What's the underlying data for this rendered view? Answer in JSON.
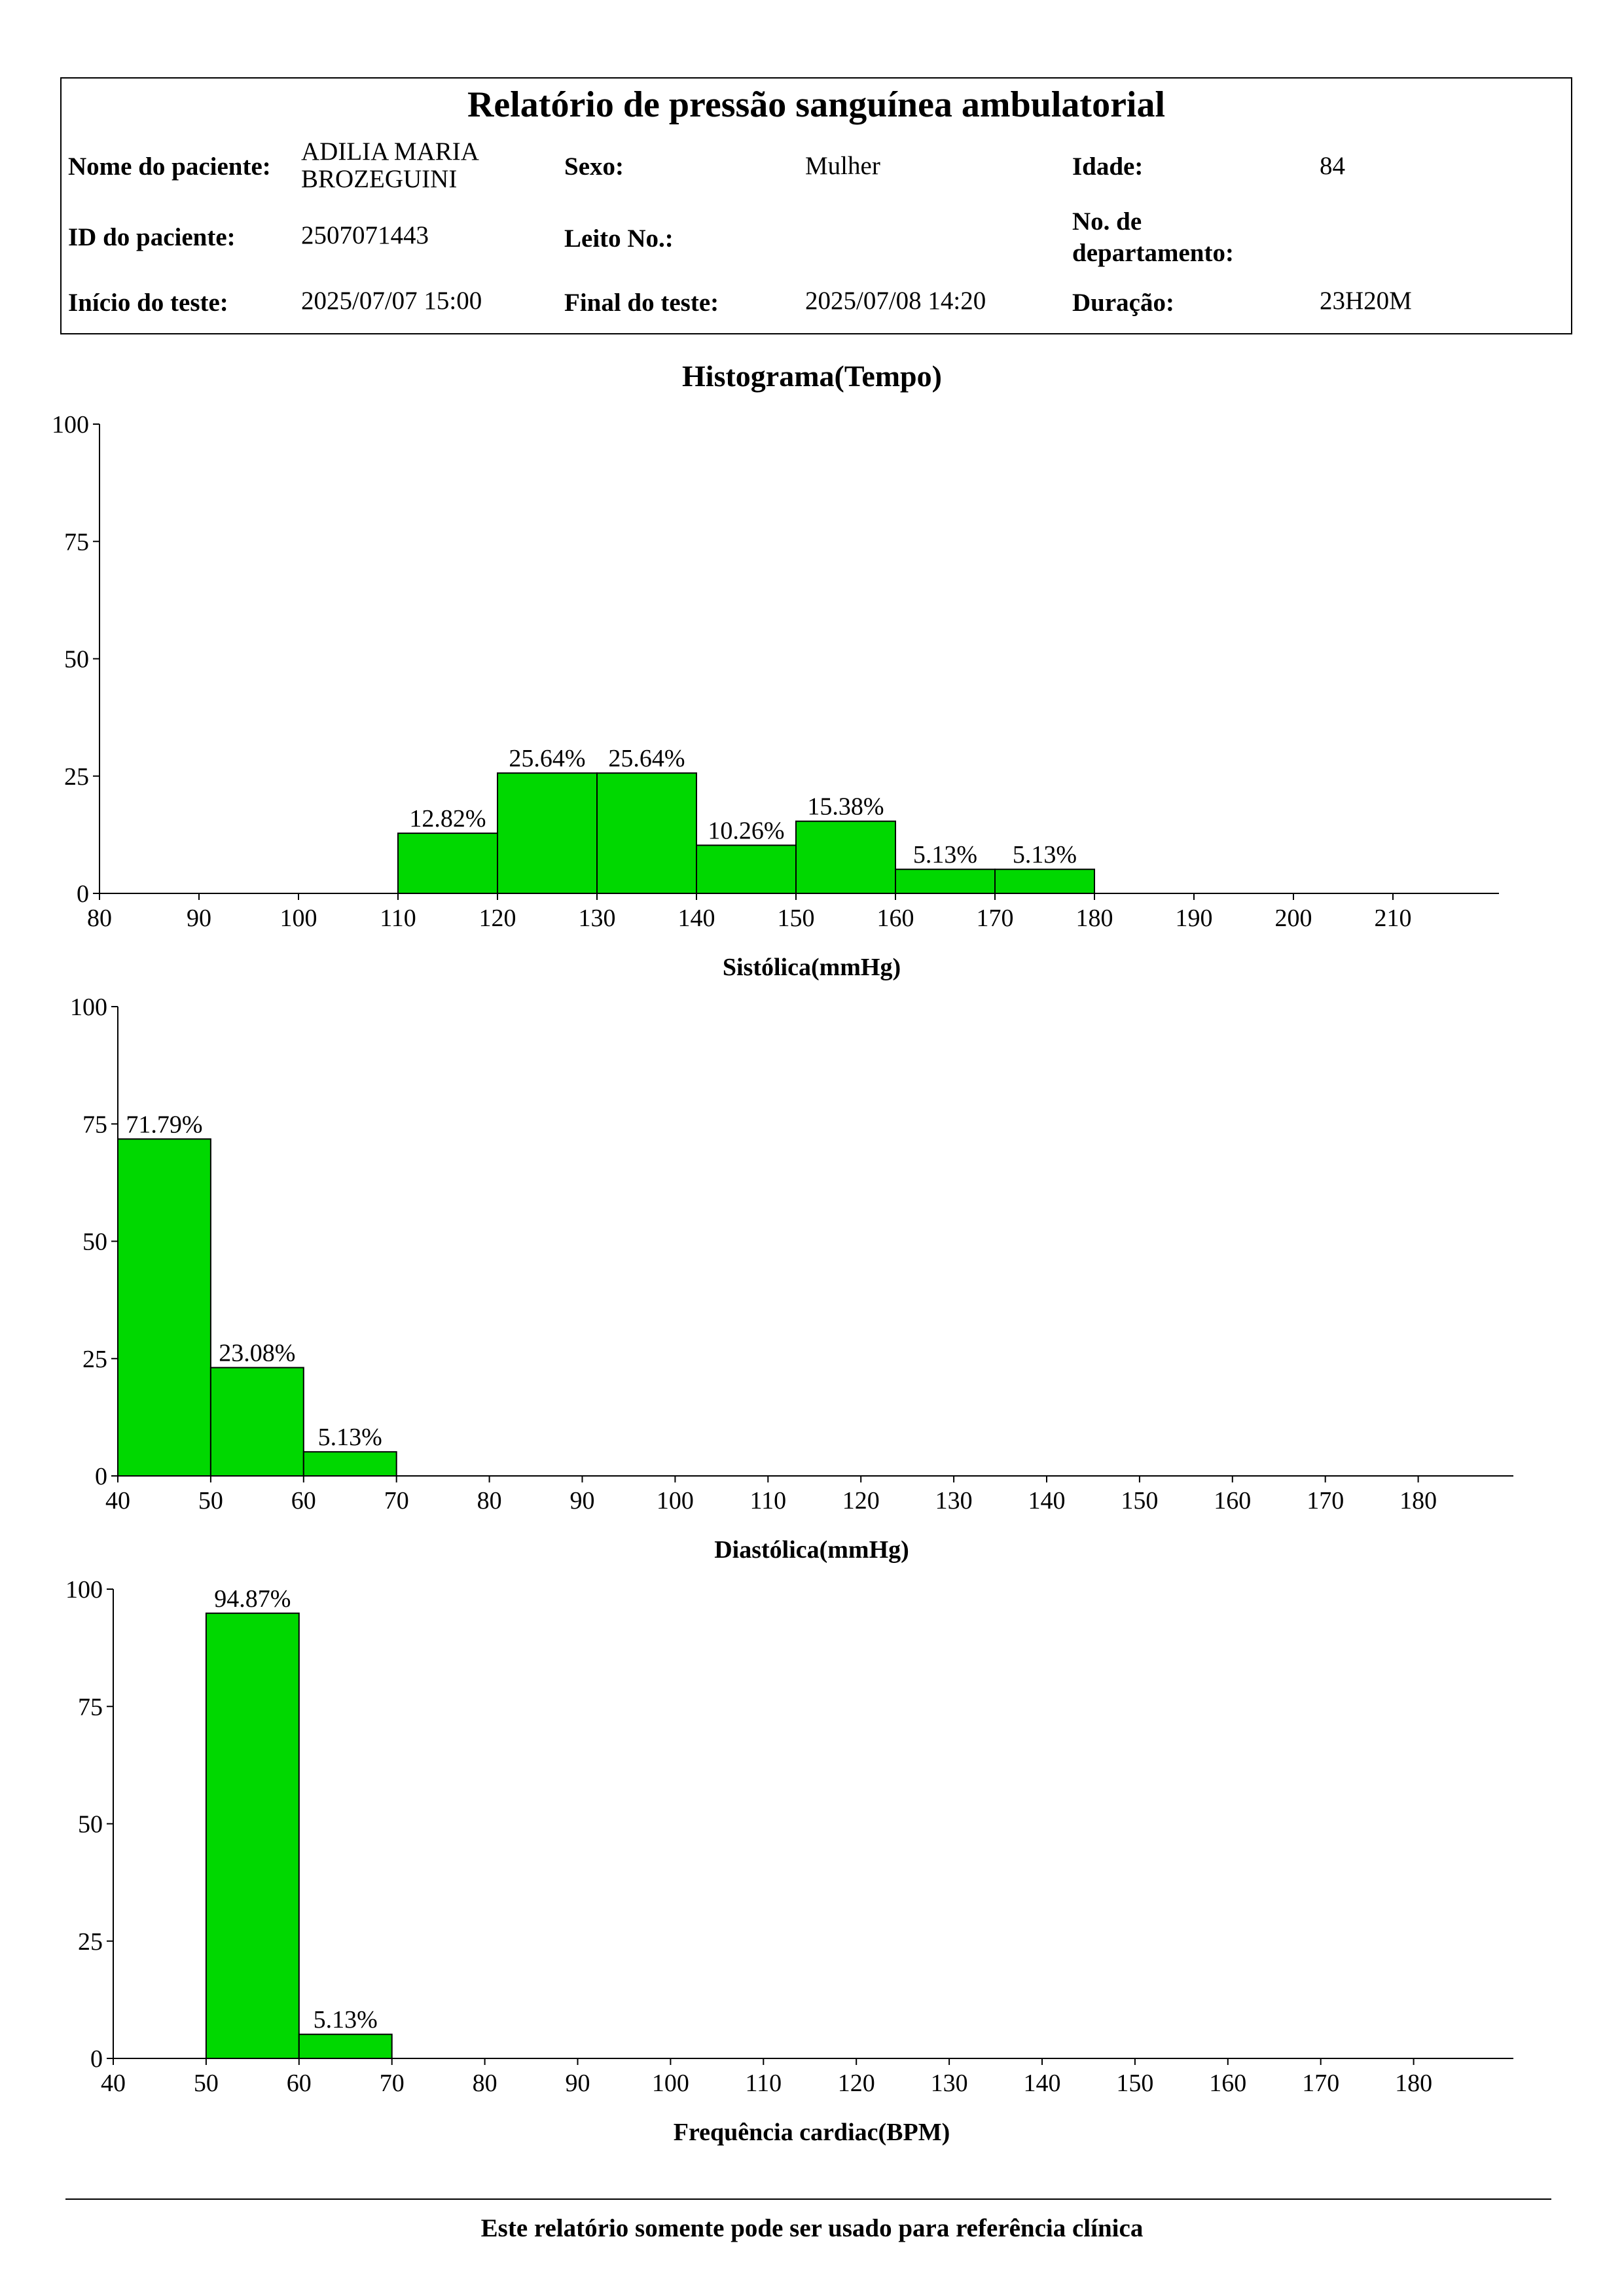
{
  "report": {
    "title": "Relatório de pressão sanguínea ambulatorial",
    "patient_name_label": "Nome do paciente:",
    "patient_name_line1": "ADILIA MARIA",
    "patient_name_line2": "BROZEGUINI",
    "sex_label": "Sexo:",
    "sex_value": "Mulher",
    "age_label": "Idade:",
    "age_value": "84",
    "patient_id_label": "ID do paciente:",
    "patient_id_value": "2507071443",
    "bed_label": "Leito No.:",
    "bed_value": "",
    "dept_label_line1": "No. de",
    "dept_label_line2": "departamento:",
    "dept_value": "",
    "start_label": "Início do teste:",
    "start_value": "2025/07/07 15:00",
    "end_label": "Final do teste:",
    "end_value": "2025/07/08 14:20",
    "duration_label": "Duração:",
    "duration_value": "23H20M"
  },
  "histogram_title": "Histograma(Tempo)",
  "chart_data": [
    {
      "type": "bar",
      "xlabel": "Sistólica(mmHg)",
      "ylabel": "",
      "xlim": [
        80,
        220
      ],
      "ylim": [
        0,
        100
      ],
      "xticks": [
        80,
        90,
        100,
        110,
        120,
        130,
        140,
        150,
        160,
        170,
        180,
        190,
        200,
        210
      ],
      "yticks": [
        0,
        25,
        50,
        75,
        100
      ],
      "bins": [
        {
          "from": 110,
          "to": 120,
          "value": 12.82,
          "label": "12.82%"
        },
        {
          "from": 120,
          "to": 130,
          "value": 25.64,
          "label": "25.64%"
        },
        {
          "from": 130,
          "to": 140,
          "value": 25.64,
          "label": "25.64%"
        },
        {
          "from": 140,
          "to": 150,
          "value": 10.26,
          "label": "10.26%"
        },
        {
          "from": 150,
          "to": 160,
          "value": 15.38,
          "label": "15.38%"
        },
        {
          "from": 160,
          "to": 170,
          "value": 5.13,
          "label": "5.13%"
        },
        {
          "from": 170,
          "to": 180,
          "value": 5.13,
          "label": "5.13%"
        }
      ],
      "bar_color": "#00d800",
      "grid": false
    },
    {
      "type": "bar",
      "xlabel": "Diastólica(mmHg)",
      "ylabel": "",
      "xlim": [
        40,
        190
      ],
      "ylim": [
        0,
        100
      ],
      "xticks": [
        40,
        50,
        60,
        70,
        80,
        90,
        100,
        110,
        120,
        130,
        140,
        150,
        160,
        170,
        180
      ],
      "yticks": [
        0,
        25,
        50,
        75,
        100
      ],
      "bins": [
        {
          "from": 40,
          "to": 50,
          "value": 71.79,
          "label": "71.79%"
        },
        {
          "from": 50,
          "to": 60,
          "value": 23.08,
          "label": "23.08%"
        },
        {
          "from": 60,
          "to": 70,
          "value": 5.13,
          "label": "5.13%"
        }
      ],
      "bar_color": "#00d800",
      "grid": false
    },
    {
      "type": "bar",
      "xlabel": "Frequência cardiac(BPM)",
      "ylabel": "",
      "xlim": [
        40,
        190
      ],
      "ylim": [
        0,
        100
      ],
      "xticks": [
        40,
        50,
        60,
        70,
        80,
        90,
        100,
        110,
        120,
        130,
        140,
        150,
        160,
        170,
        180
      ],
      "yticks": [
        0,
        25,
        50,
        75,
        100
      ],
      "bins": [
        {
          "from": 50,
          "to": 60,
          "value": 94.87,
          "label": "94.87%"
        },
        {
          "from": 60,
          "to": 70,
          "value": 5.13,
          "label": "5.13%"
        }
      ],
      "bar_color": "#00d800",
      "grid": false
    }
  ],
  "footer": "Este relatório somente pode ser usado para referência clínica"
}
